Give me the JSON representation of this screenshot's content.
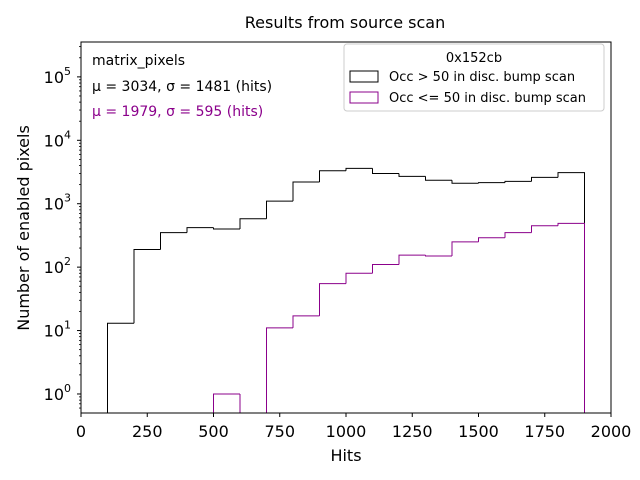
{
  "chart_data": {
    "type": "histogram",
    "title": "Results from source scan",
    "xlabel": "Hits",
    "ylabel": "Number of enabled pixels",
    "xlim": [
      0,
      2000
    ],
    "ylim_log10": [
      -0.3,
      5.55
    ],
    "yscale": "log",
    "x_ticks": [
      0,
      250,
      500,
      750,
      1000,
      1250,
      1500,
      1750,
      2000
    ],
    "x_tick_labels": [
      "0",
      "250",
      "500",
      "750",
      "1000",
      "1250",
      "1500",
      "1750",
      "2000"
    ],
    "y_tick_exponents": [
      0,
      1,
      2,
      3,
      4,
      5
    ],
    "y_tick_base": "10",
    "annotations": {
      "name": "matrix_pixels",
      "black_stats": "μ = 3034, σ = 1481 (hits)",
      "purple_stats": "μ = 1979, σ = 595 (hits)"
    },
    "legend": {
      "title": "0x152cb",
      "position": "top-right",
      "entries": [
        "Occ > 50 in disc. bump scan",
        "Occ <= 50 in disc. bump scan"
      ]
    },
    "bin_edges": [
      0,
      100,
      200,
      300,
      400,
      500,
      600,
      700,
      800,
      900,
      1000,
      1100,
      1200,
      1300,
      1400,
      1500,
      1600,
      1700,
      1800,
      1900
    ],
    "series": [
      {
        "name": "Occ > 50 in disc. bump scan",
        "color": "#000000",
        "values": [
          0,
          13,
          190,
          350,
          420,
          400,
          580,
          1100,
          2200,
          3300,
          3600,
          3000,
          2700,
          2350,
          2100,
          2150,
          2250,
          2600,
          3100
        ]
      },
      {
        "name": "Occ <= 50 in disc. bump scan",
        "color": "#8b008b",
        "values": [
          0,
          0,
          0,
          0,
          0,
          1,
          0,
          11,
          17,
          55,
          80,
          110,
          155,
          150,
          250,
          290,
          350,
          450,
          490
        ]
      }
    ]
  }
}
